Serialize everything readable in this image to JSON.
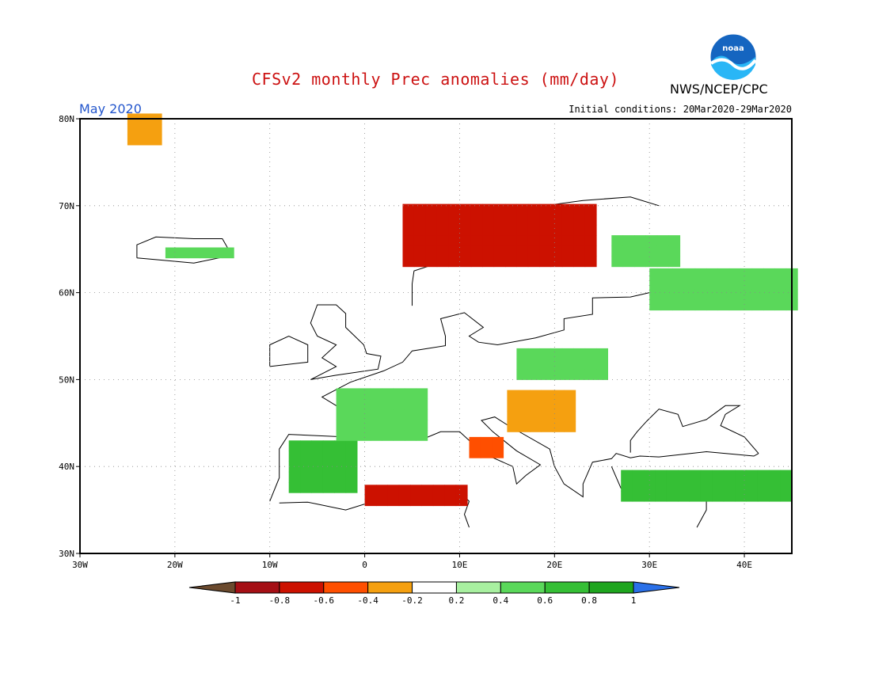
{
  "header": {
    "title": "CFSv2 monthly Prec anomalies (mm/day)",
    "agency": "NWS/NCEP/CPC",
    "valid_month": "May 2020",
    "initial_conditions": "Initial conditions: 20Mar2020-29Mar2020",
    "logo_text": "noaa"
  },
  "map": {
    "projection": "lat-lon",
    "lon_range": [
      -30,
      45
    ],
    "lat_range": [
      30,
      80
    ],
    "lon_ticks": [
      "30W",
      "20W",
      "10W",
      "0",
      "10E",
      "20E",
      "30E",
      "40E"
    ],
    "lat_ticks": [
      "80N",
      "70N",
      "60N",
      "50N",
      "40N",
      "30N"
    ],
    "gridlines": "dotted"
  },
  "colorbar": {
    "labels": [
      "-1",
      "-0.8",
      "-0.6",
      "-0.4",
      "-0.2",
      "0.2",
      "0.4",
      "0.6",
      "0.8",
      "1"
    ],
    "colors": [
      "#6b4a2e",
      "#a50f15",
      "#cc1100",
      "#ff4f00",
      "#f5a010",
      "#ffffff",
      "#a8f0a0",
      "#5ad85a",
      "#35bf35",
      "#1ea51e",
      "#2a70e8"
    ]
  },
  "anomaly_regions": [
    {
      "name": "Norwegian coast",
      "level": -0.8,
      "lon": [
        4,
        24
      ],
      "lat": [
        63,
        70
      ]
    },
    {
      "name": "Algeria coast",
      "level": -0.7,
      "lon": [
        0,
        10
      ],
      "lat": [
        35.5,
        37
      ]
    },
    {
      "name": "Central Italy",
      "level": -0.6,
      "lon": [
        11,
        14
      ],
      "lat": [
        41,
        43
      ]
    },
    {
      "name": "Greenland east",
      "level": -0.3,
      "lon": [
        -25,
        -22
      ],
      "lat": [
        77,
        80
      ]
    },
    {
      "name": "Iberia",
      "level": 0.6,
      "lon": [
        -8,
        -1
      ],
      "lat": [
        37,
        42
      ]
    },
    {
      "name": "France",
      "level": 0.4,
      "lon": [
        -3,
        6
      ],
      "lat": [
        43,
        49
      ]
    },
    {
      "name": "Central Europe",
      "level": 0.4,
      "lon": [
        16,
        25
      ],
      "lat": [
        50,
        53
      ]
    },
    {
      "name": "Western Russia",
      "level": 0.4,
      "lon": [
        30,
        45
      ],
      "lat": [
        58,
        62
      ]
    },
    {
      "name": "Turkey",
      "level": 0.6,
      "lon": [
        27,
        45
      ],
      "lat": [
        36,
        39
      ]
    },
    {
      "name": "Balkans",
      "level": -0.3,
      "lon": [
        15,
        21
      ],
      "lat": [
        44,
        48
      ]
    },
    {
      "name": "Iceland",
      "level": 0.4,
      "lon": [
        -21,
        -15
      ],
      "lat": [
        64,
        65
      ]
    },
    {
      "name": "Finland east",
      "level": 0.4,
      "lon": [
        26,
        33
      ],
      "lat": [
        63,
        66
      ]
    }
  ]
}
